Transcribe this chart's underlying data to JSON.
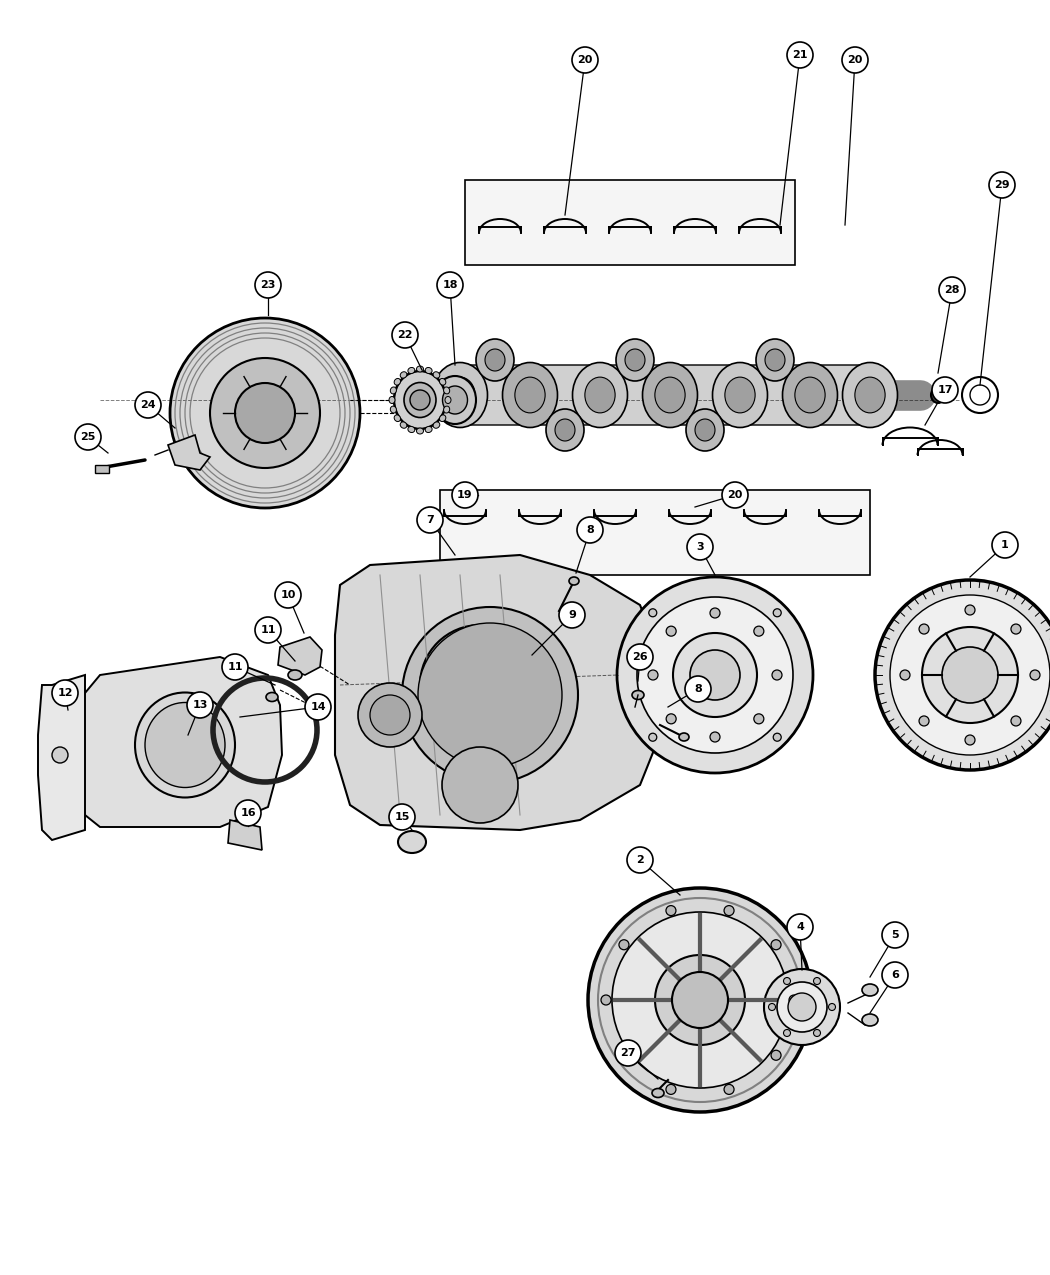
{
  "background_color": "#ffffff",
  "fig_width": 10.5,
  "fig_height": 12.75,
  "line_color": "#000000",
  "circle_facecolor": "#ffffff",
  "font_size": 8.5
}
